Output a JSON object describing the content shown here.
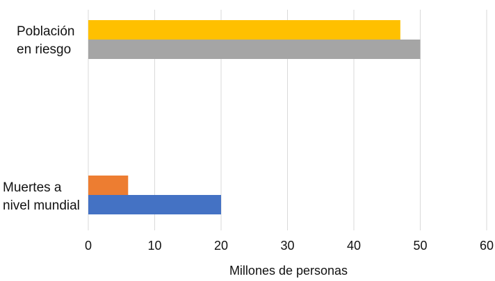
{
  "chart_data": {
    "type": "bar",
    "orientation": "horizontal",
    "categories": [
      [
        "Población",
        "en riesgo"
      ],
      [
        "Muertes a",
        "nivel mundial"
      ]
    ],
    "bars": [
      [
        {
          "value": 47,
          "color": "#FFC000"
        },
        {
          "value": 50,
          "color": "#A5A5A5"
        }
      ],
      [
        {
          "value": 6,
          "color": "#ED7D31"
        },
        {
          "value": 20,
          "color": "#4472C4"
        }
      ]
    ],
    "xlabel": "Millones de personas",
    "xlim": [
      0,
      60
    ],
    "xticks": [
      "0",
      "10",
      "20",
      "30",
      "40",
      "50",
      "60"
    ],
    "grid": true
  }
}
